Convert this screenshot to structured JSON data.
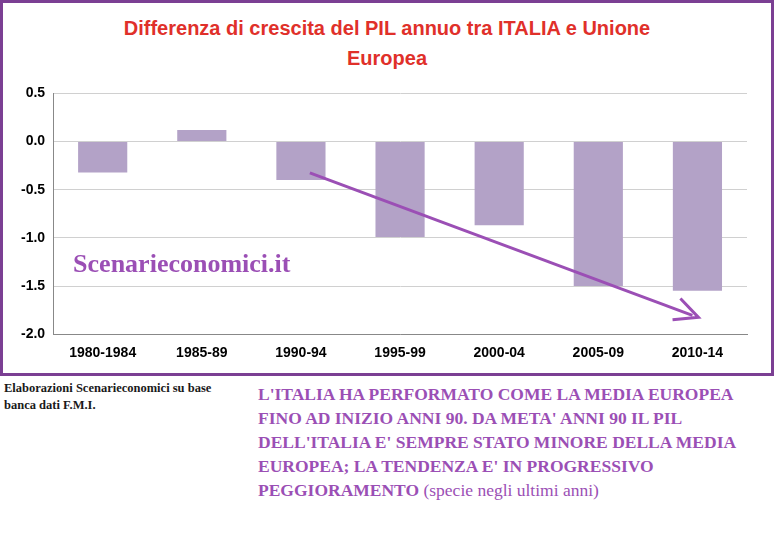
{
  "chart_data": {
    "type": "bar",
    "title": "Differenza di crescita del PIL annuo tra ITALIA e Unione Europea",
    "categories": [
      "1980-1984",
      "1985-89",
      "1990-94",
      "1995-99",
      "2000-04",
      "2005-09",
      "2010-14"
    ],
    "values": [
      -0.32,
      0.12,
      -0.4,
      -0.99,
      -0.87,
      -1.5,
      -1.55
    ],
    "color": "#b3a2c7",
    "ylim": [
      -2,
      0.5
    ],
    "yticks": [
      0.5,
      {
        "value": 0,
        "label": "0.0"
      },
      -0.5,
      {
        "value": -1,
        "label": "-1.0"
      },
      -1.5,
      {
        "value": -2,
        "label": "-2.0"
      }
    ],
    "grid": true,
    "legend": "none",
    "data_labels": false,
    "annotations": [
      "Scenarieconomici.it",
      "Elaborazioni Scenarieconomici su base banca dati F.M.I.",
      "L'ITALIA HA PERFORMATO COME LA MEDIA EUROPEA FINO AD INIZIO ANNI 90. DA META' ANNI 90 IL PIL DELL'ITALIA E' SEMPRE STATO MINORE DELLA MEDIA EUROPEA; LA TENDENZA E' IN PROGRESSIVO PEGGIORAMENTO",
      "(specie negli ultimi anni)"
    ]
  }
}
